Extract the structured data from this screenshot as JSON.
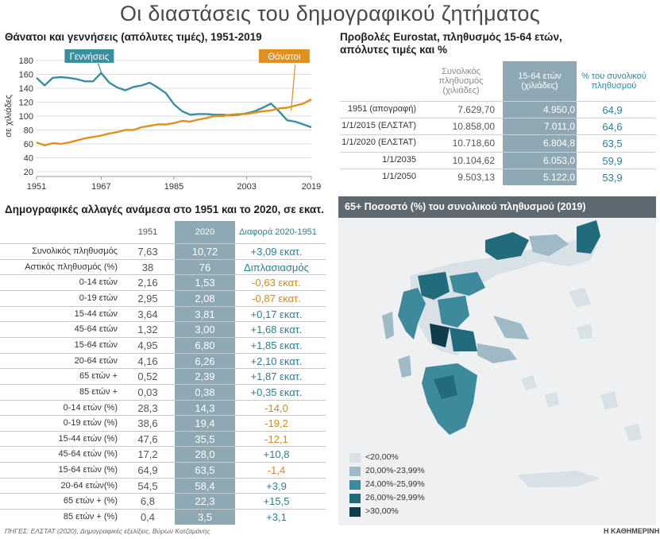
{
  "main_title": "Οι διαστάσεις του δημογραφικού ζητήματος",
  "line_chart": {
    "title": "Θάνατοι και γεννήσεις (απόλυτες τιμές), 1951-2019",
    "ylabel": "σε χιλιάδες",
    "callout_births": "Γεννήσεις",
    "callout_deaths": "Θάνατοι",
    "x_ticks": [
      "1951",
      "1967",
      "1985",
      "2003",
      "2019"
    ],
    "y_ticks": [
      "20",
      "40",
      "60",
      "80",
      "100",
      "120",
      "140",
      "160",
      "180"
    ]
  },
  "chart_data": {
    "type": "line",
    "title": "Θάνατοι και γεννήσεις (απόλυτες τιμές), 1951-2019",
    "xlabel": "",
    "ylabel": "σε χιλιάδες",
    "ylim": [
      20,
      180
    ],
    "xlim": [
      1951,
      2019
    ],
    "grid": true,
    "x": [
      1951,
      1953,
      1955,
      1957,
      1959,
      1961,
      1963,
      1965,
      1967,
      1969,
      1971,
      1973,
      1975,
      1977,
      1979,
      1981,
      1983,
      1985,
      1987,
      1989,
      1991,
      1993,
      1995,
      1997,
      1999,
      2001,
      2003,
      2005,
      2007,
      2009,
      2011,
      2013,
      2015,
      2017,
      2019
    ],
    "series": [
      {
        "name": "Γεννήσεις",
        "color": "#3a8f9f",
        "values": [
          155,
          144,
          155,
          156,
          155,
          153,
          150,
          150,
          162,
          148,
          141,
          137,
          142,
          144,
          148,
          141,
          133,
          117,
          107,
          102,
          103,
          103,
          102,
          102,
          101,
          102,
          104,
          107,
          112,
          118,
          107,
          94,
          92,
          88,
          84
        ]
      },
      {
        "name": "Θάνατοι",
        "color": "#e0901e",
        "values": [
          62,
          58,
          61,
          60,
          62,
          65,
          68,
          70,
          72,
          75,
          77,
          80,
          80,
          84,
          86,
          88,
          88,
          90,
          93,
          92,
          95,
          97,
          100,
          100,
          102,
          103,
          103,
          105,
          107,
          108,
          111,
          112,
          115,
          118,
          124
        ]
      }
    ]
  },
  "projections": {
    "title": "Προβολές Eurostat, πληθυσμός 15-64 ετών, απόλυτες τιμές και %",
    "headers": [
      "Συνολικός πληθυσμός (χιλιάδες)",
      "15-64 ετών (χιλιάδες)",
      "% του συνολικού πληθυσμού"
    ],
    "rows": [
      {
        "label": "1951 (απογραφή)",
        "total": "7.629,70",
        "working_age": "4.950,0",
        "pct": "64,9"
      },
      {
        "label": "1/1/2015 (ΕΛΣΤΑΤ)",
        "total": "10.858,00",
        "working_age": "7.011,0",
        "pct": "64,6"
      },
      {
        "label": "1/1/2020 (ΕΛΣΤΑΤ)",
        "total": "10.718,60",
        "working_age": "6.804,8",
        "pct": "63,5"
      },
      {
        "label": "1/1/2035",
        "total": "10.104,62",
        "working_age": "6.053,0",
        "pct": "59,9"
      },
      {
        "label": "1/1/2050",
        "total": "9.503,13",
        "working_age": "5.122,0",
        "pct": "53,9"
      }
    ]
  },
  "demographic": {
    "title": "Δημογραφικές αλλαγές ανάμεσα στο 1951 και το 2020, σε εκατ.",
    "headers": [
      "1951",
      "2020",
      "Διαφορά 2020-1951"
    ],
    "colors": {
      "positive": "#2b7f96",
      "negative": "#d98a12"
    },
    "rows": [
      {
        "label": "Συνολικός πληθυσμός",
        "v1951": "7,63",
        "v2020": "10,72",
        "diff": "+3,09 εκατ.",
        "sign": "positive"
      },
      {
        "label": "Αστικός πληθυσμός (%)",
        "v1951": "38",
        "v2020": "76",
        "diff": "Διπλασιασμός",
        "sign": "positive"
      },
      {
        "label": "0-14 ετών",
        "v1951": "2,16",
        "v2020": "1,53",
        "diff": "-0,63 εκατ.",
        "sign": "negative"
      },
      {
        "label": "0-19 ετών",
        "v1951": "2,95",
        "v2020": "2,08",
        "diff": "-0,87 εκατ.",
        "sign": "negative"
      },
      {
        "label": "15-44 ετών",
        "v1951": "3,64",
        "v2020": "3,81",
        "diff": "+0,17 εκατ.",
        "sign": "positive"
      },
      {
        "label": "45-64 ετών",
        "v1951": "1,32",
        "v2020": "3,00",
        "diff": "+1,68 εκατ.",
        "sign": "positive"
      },
      {
        "label": "15-64 ετών",
        "v1951": "4,95",
        "v2020": "6,80",
        "diff": "+1,85 εκατ.",
        "sign": "positive"
      },
      {
        "label": "20-64 ετών",
        "v1951": "4,16",
        "v2020": "6,26",
        "diff": "+2,10 εκατ.",
        "sign": "positive"
      },
      {
        "label": "65 ετών +",
        "v1951": "0,52",
        "v2020": "2,39",
        "diff": "+1,87 εκατ.",
        "sign": "positive"
      },
      {
        "label": "85 ετών +",
        "v1951": "0,03",
        "v2020": "0,38",
        "diff": "+0,35 εκατ.",
        "sign": "positive"
      },
      {
        "label": "0-14 ετών (%)",
        "v1951": "28,3",
        "v2020": "14,3",
        "diff": "-14,0",
        "sign": "negative"
      },
      {
        "label": "0-19 ετών (%)",
        "v1951": "38,6",
        "v2020": "19,4",
        "diff": "-19,2",
        "sign": "negative"
      },
      {
        "label": "15-44 ετών (%)",
        "v1951": "47,6",
        "v2020": "35,5",
        "diff": "-12,1",
        "sign": "negative"
      },
      {
        "label": "45-64 ετών (%)",
        "v1951": "17,2",
        "v2020": "28,0",
        "diff": "+10,8",
        "sign": "positive"
      },
      {
        "label": "15-64 ετών (%)",
        "v1951": "64,9",
        "v2020": "63,5",
        "diff": "-1,4",
        "sign": "negative"
      },
      {
        "label": "20-64 ετών(%)",
        "v1951": "54,5",
        "v2020": "58,4",
        "diff": "+3,9",
        "sign": "positive"
      },
      {
        "label": "65 ετών + (%)",
        "v1951": "6,8",
        "v2020": "22,3",
        "diff": "+15,5",
        "sign": "positive"
      },
      {
        "label": "85 ετών + (%)",
        "v1951": "0,4",
        "v2020": "3,5",
        "diff": "+3,1",
        "sign": "positive"
      }
    ]
  },
  "map": {
    "title": "65+ Ποσοστό (%) του συνολικού πληθυσμού (2019)",
    "legend": [
      {
        "label": "<20,00%",
        "color": "#d7e1e6"
      },
      {
        "label": "20,00%-23,99%",
        "color": "#9fbac5"
      },
      {
        "label": "24,00%-25,99%",
        "color": "#3d8a9c"
      },
      {
        "label": "26,00%-29,99%",
        "color": "#216b7d"
      },
      {
        "label": ">30,00%",
        "color": "#0e3c4b"
      }
    ]
  },
  "sources": "ΠΗΓΕΣ: ΕΛΣΤΑΤ (2020), Δημογραφικές εξελίξεις, Βύρων Κοτζαμάνης",
  "publisher": "Η ΚΑΘΗΜΕΡΙΝΗ"
}
